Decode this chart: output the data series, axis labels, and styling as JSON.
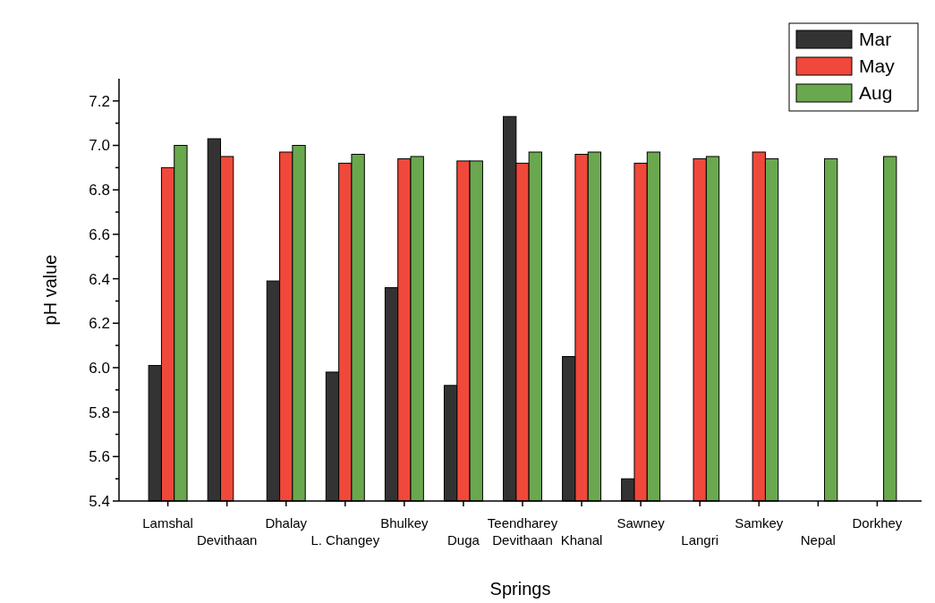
{
  "chart_data": {
    "type": "bar",
    "xlabel": "Springs",
    "ylabel": "pH value",
    "categories": [
      "Lamshal",
      "Devithaan",
      "Dhalay",
      "L. Changey",
      "Bhulkey",
      "Duga",
      "Teendharey Devithaan",
      "Khanal",
      "Sawney",
      "Langri",
      "Samkey",
      "Nepal",
      "Dorkhey"
    ],
    "series": [
      {
        "name": "Mar",
        "color": "#333333",
        "values": [
          6.01,
          7.03,
          6.39,
          5.98,
          6.36,
          5.92,
          7.13,
          6.05,
          5.5,
          null,
          null,
          null,
          null
        ]
      },
      {
        "name": "May",
        "color": "#f0483a",
        "values": [
          6.9,
          6.95,
          6.97,
          6.92,
          6.94,
          6.93,
          6.92,
          6.96,
          6.92,
          6.94,
          6.97,
          null,
          null
        ]
      },
      {
        "name": "Aug",
        "color": "#6aa84f",
        "values": [
          7.0,
          null,
          7.0,
          6.96,
          6.95,
          6.93,
          6.97,
          6.97,
          6.97,
          6.95,
          6.94,
          6.94,
          6.95
        ]
      }
    ],
    "ylim": [
      5.4,
      7.3
    ],
    "yticks": [
      5.4,
      {
        "value": 5.5,
        "label": null
      },
      5.6,
      {
        "value": 5.7,
        "label": null
      },
      5.8,
      {
        "value": 5.9,
        "label": null
      },
      {
        "value": 6.0,
        "label": "6.0"
      },
      {
        "value": 6.1,
        "label": null
      },
      6.2,
      {
        "value": 6.3,
        "label": null
      },
      6.4,
      {
        "value": 6.5,
        "label": null
      },
      6.6,
      {
        "value": 6.7,
        "label": null
      },
      6.8,
      {
        "value": 6.9,
        "label": null
      },
      {
        "value": 7.0,
        "label": "7.0"
      },
      {
        "value": 7.1,
        "label": null
      },
      7.2
    ],
    "grid": false,
    "legend": "top right"
  }
}
